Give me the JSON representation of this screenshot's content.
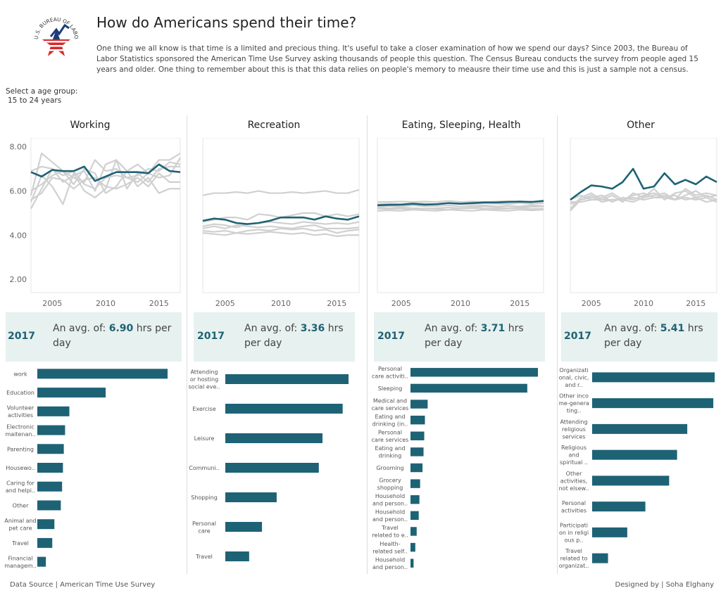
{
  "header": {
    "logo_text": "U.S. BUREAU OF LABOR STATISTICS",
    "title": "How do Americans spend their time?",
    "intro_text": "One thing we all know is that time is a limited and precious thing. It's useful to take a closer examination of how we spend our days? Since 2003, the Bureau of Labor Statistics sponsored the American Time Use Survey asking thousands of people this question. The Census Bureau conducts the survey from people aged 15 years and older. One thing to remember about this is that this data relies on people's memory to meausre their time use  and this is just a sample not a census."
  },
  "filter": {
    "label": "Select a age group:",
    "value": "15 to 24 years"
  },
  "colors": {
    "highlight": "#1e6275",
    "other_lines": "#d0d0d0",
    "avg_box": "#e7f1ef"
  },
  "chart_data": [
    {
      "type": "line",
      "title": "Working",
      "x": [
        2003,
        2004,
        2005,
        2006,
        2007,
        2008,
        2009,
        2010,
        2011,
        2012,
        2013,
        2014,
        2015,
        2016,
        2017
      ],
      "ylim": [
        1.4,
        8.4
      ],
      "yticks": [
        "2.00",
        "4.00",
        "6.00",
        "8.00"
      ],
      "xticks": [
        "2005",
        "2010",
        "2015"
      ],
      "highlight_series": {
        "values": [
          6.85,
          6.65,
          6.95,
          6.9,
          6.9,
          7.1,
          6.45,
          6.65,
          6.85,
          6.85,
          6.85,
          6.8,
          7.2,
          6.9,
          6.85
        ]
      },
      "other_series": [
        {
          "values": [
            5.2,
            6.1,
            7.0,
            6.4,
            6.7,
            6.9,
            6.0,
            7.2,
            7.4,
            6.9,
            7.2,
            6.8,
            7.4,
            7.4,
            7.7
          ]
        },
        {
          "values": [
            5.8,
            7.7,
            7.3,
            6.9,
            6.6,
            6.4,
            7.4,
            6.9,
            7.0,
            6.6,
            6.7,
            7.0,
            6.9,
            7.3,
            7.2
          ]
        },
        {
          "values": [
            5.5,
            6.7,
            6.2,
            5.4,
            6.8,
            6.0,
            5.7,
            6.1,
            7.4,
            6.1,
            6.8,
            6.4,
            7.0,
            7.1,
            7.1
          ]
        },
        {
          "values": [
            6.0,
            6.3,
            6.7,
            6.9,
            6.3,
            7.0,
            6.8,
            5.9,
            6.2,
            6.9,
            6.2,
            6.6,
            5.9,
            6.1,
            6.1
          ]
        },
        {
          "values": [
            5.6,
            5.9,
            6.6,
            6.5,
            6.1,
            6.5,
            6.6,
            6.2,
            6.1,
            6.3,
            6.6,
            6.2,
            6.8,
            6.4,
            6.4
          ]
        },
        {
          "values": [
            6.9,
            7.1,
            7.0,
            6.7,
            6.9,
            6.3,
            6.1,
            6.6,
            6.7,
            6.6,
            6.4,
            6.8,
            6.6,
            6.7,
            7.5
          ]
        }
      ]
    },
    {
      "type": "line",
      "title": "Recreation",
      "x": [
        2003,
        2004,
        2005,
        2006,
        2007,
        2008,
        2009,
        2010,
        2011,
        2012,
        2013,
        2014,
        2015,
        2016,
        2017
      ],
      "ylim": [
        1.4,
        8.4
      ],
      "xticks": [
        "2005",
        "2010",
        "2015"
      ],
      "highlight_series": {
        "values": [
          4.65,
          4.75,
          4.7,
          4.55,
          4.5,
          4.55,
          4.65,
          4.8,
          4.8,
          4.8,
          4.7,
          4.85,
          4.75,
          4.7,
          4.85
        ]
      },
      "other_series": [
        {
          "values": [
            5.8,
            5.9,
            5.9,
            5.95,
            5.9,
            6.0,
            5.9,
            5.9,
            5.95,
            5.9,
            5.95,
            6.0,
            5.9,
            5.9,
            6.05
          ]
        },
        {
          "values": [
            4.6,
            4.7,
            4.8,
            4.8,
            4.7,
            4.95,
            4.9,
            4.8,
            4.9,
            5.0,
            5.0,
            4.85,
            4.95,
            4.85,
            4.95
          ]
        },
        {
          "values": [
            4.3,
            4.4,
            4.3,
            4.45,
            4.4,
            4.35,
            4.4,
            4.35,
            4.3,
            4.4,
            4.45,
            4.3,
            4.3,
            4.3,
            4.35
          ]
        },
        {
          "values": [
            4.2,
            4.15,
            4.2,
            4.1,
            4.2,
            4.25,
            4.2,
            4.3,
            4.25,
            4.3,
            4.2,
            4.25,
            4.1,
            4.2,
            4.25
          ]
        },
        {
          "values": [
            4.1,
            4.05,
            4.0,
            4.1,
            4.05,
            4.1,
            4.15,
            4.1,
            4.05,
            4.1,
            4.0,
            4.05,
            3.95,
            4.0,
            4.0
          ]
        },
        {
          "values": [
            4.4,
            4.5,
            4.45,
            4.35,
            4.5,
            4.55,
            4.6,
            4.55,
            4.5,
            4.6,
            4.55,
            4.5,
            4.55,
            4.5,
            4.6
          ]
        }
      ]
    },
    {
      "type": "line",
      "title": "Eating, Sleeping, Health",
      "x": [
        2003,
        2004,
        2005,
        2006,
        2007,
        2008,
        2009,
        2010,
        2011,
        2012,
        2013,
        2014,
        2015,
        2016,
        2017
      ],
      "ylim": [
        1.4,
        8.4
      ],
      "xticks": [
        "2005",
        "2010",
        "2015"
      ],
      "highlight_series": {
        "values": [
          5.35,
          5.37,
          5.38,
          5.42,
          5.38,
          5.4,
          5.45,
          5.42,
          5.45,
          5.48,
          5.48,
          5.5,
          5.52,
          5.5,
          5.55
        ]
      },
      "other_series": [
        {
          "values": [
            5.5,
            5.5,
            5.52,
            5.5,
            5.52,
            5.5,
            5.55,
            5.5,
            5.52,
            5.5,
            5.52,
            5.55,
            5.5,
            5.52,
            5.5
          ]
        },
        {
          "values": [
            5.25,
            5.22,
            5.25,
            5.22,
            5.2,
            5.22,
            5.25,
            5.22,
            5.25,
            5.3,
            5.25,
            5.22,
            5.25,
            5.28,
            5.3
          ]
        },
        {
          "values": [
            5.2,
            5.18,
            5.2,
            5.15,
            5.2,
            5.18,
            5.15,
            5.2,
            5.22,
            5.2,
            5.18,
            5.2,
            5.22,
            5.18,
            5.2
          ]
        },
        {
          "values": [
            5.3,
            5.32,
            5.3,
            5.35,
            5.3,
            5.32,
            5.35,
            5.3,
            5.32,
            5.35,
            5.3,
            5.32,
            5.3,
            5.35,
            5.32
          ]
        },
        {
          "values": [
            5.4,
            5.42,
            5.4,
            5.45,
            5.42,
            5.4,
            5.45,
            5.42,
            5.4,
            5.45,
            5.42,
            5.4,
            5.45,
            5.42,
            5.45
          ]
        },
        {
          "values": [
            5.1,
            5.12,
            5.1,
            5.15,
            5.12,
            5.1,
            5.15,
            5.12,
            5.1,
            5.15,
            5.12,
            5.1,
            5.15,
            5.12,
            5.15
          ]
        }
      ]
    },
    {
      "type": "line",
      "title": "Other",
      "x": [
        2003,
        2004,
        2005,
        2006,
        2007,
        2008,
        2009,
        2010,
        2011,
        2012,
        2013,
        2014,
        2015,
        2016,
        2017
      ],
      "ylim": [
        1.4,
        8.4
      ],
      "xticks": [
        "2005",
        "2010",
        "2015"
      ],
      "highlight_series": {
        "values": [
          5.6,
          5.95,
          6.25,
          6.2,
          6.1,
          6.4,
          7.0,
          6.1,
          6.2,
          6.8,
          6.3,
          6.5,
          6.3,
          6.65,
          6.4
        ]
      },
      "other_series": [
        {
          "values": [
            5.2,
            5.7,
            5.9,
            5.6,
            5.8,
            5.5,
            5.9,
            5.7,
            5.8,
            5.9,
            5.6,
            6.1,
            5.8,
            5.9,
            5.8
          ]
        },
        {
          "values": [
            5.4,
            5.6,
            5.7,
            5.8,
            5.5,
            5.7,
            5.6,
            5.8,
            5.9,
            5.7,
            5.8,
            5.6,
            5.7,
            5.5,
            5.6
          ]
        },
        {
          "values": [
            5.1,
            5.6,
            5.8,
            5.5,
            5.6,
            5.6,
            5.5,
            5.7,
            6.1,
            5.6,
            5.9,
            6.0,
            5.7,
            5.8,
            5.6
          ]
        },
        {
          "values": [
            5.6,
            5.8,
            5.6,
            5.7,
            5.9,
            5.6,
            5.8,
            5.9,
            5.7,
            5.8,
            5.6,
            5.8,
            6.0,
            5.7,
            5.8
          ]
        },
        {
          "values": [
            5.5,
            5.5,
            5.6,
            5.6,
            5.6,
            5.6,
            5.7,
            5.6,
            5.7,
            5.7,
            5.6,
            5.7,
            5.6,
            5.7,
            5.5
          ]
        }
      ]
    },
    {
      "type": "bar",
      "title": "Working",
      "categories": [
        [
          "work"
        ],
        [
          "Education"
        ],
        [
          "Volunteer",
          "activities"
        ],
        [
          "Electronic",
          "maitenan.."
        ],
        [
          "Parenting"
        ],
        [
          "Housewo.."
        ],
        [
          "Caring for",
          "and helpi.."
        ],
        [
          "Other"
        ],
        [
          "Animal and",
          "pet care"
        ],
        [
          "Travel"
        ],
        [
          "Financial",
          "managem.."
        ]
      ],
      "values": [
        3.05,
        1.6,
        0.75,
        0.65,
        0.62,
        0.6,
        0.58,
        0.55,
        0.4,
        0.35,
        0.2
      ]
    },
    {
      "type": "bar",
      "title": "Recreation",
      "categories": [
        [
          "Attending",
          "or hosting",
          "social eve.."
        ],
        [
          "Exercise"
        ],
        [
          "Leisure"
        ],
        [
          "Communi.."
        ],
        [
          "Shopping"
        ],
        [
          "Personal",
          "care"
        ],
        [
          "Travel"
        ]
      ],
      "values": [
        3.36,
        3.2,
        2.65,
        2.55,
        1.4,
        1.0,
        0.65
      ]
    },
    {
      "type": "bar",
      "title": "Eating, Sleeping, Health",
      "categories": [
        [
          "Personal",
          "care activiti.."
        ],
        [
          "Sleeping"
        ],
        [
          "Medical and",
          "care services"
        ],
        [
          "Eating and",
          "drinking (in.."
        ],
        [
          "Personal",
          "care services"
        ],
        [
          "Eating and",
          "drinking"
        ],
        [
          "Grooming"
        ],
        [
          "Grocery",
          "shopping"
        ],
        [
          "Household",
          "and person.."
        ],
        [
          "Household",
          "and person.."
        ],
        [
          "Travel",
          "related to e.."
        ],
        [
          "Health-",
          "related self.."
        ],
        [
          "Household",
          "and person.."
        ]
      ],
      "values": [
        3.71,
        3.4,
        0.5,
        0.42,
        0.4,
        0.38,
        0.35,
        0.28,
        0.26,
        0.24,
        0.18,
        0.14,
        0.09
      ]
    },
    {
      "type": "bar",
      "title": "Other",
      "categories": [
        [
          "Organizati",
          "onal, civic,",
          "and r.."
        ],
        [
          "Other inco",
          "me-genera",
          "ting.."
        ],
        [
          "Attending",
          "religious",
          "services"
        ],
        [
          "Religious",
          "and",
          "spiritual .."
        ],
        [
          "Other",
          "activities,",
          "not elsew.."
        ],
        [
          "Personal",
          "activities"
        ],
        [
          "Participati",
          "on in religi",
          "ous p.."
        ],
        [
          "Travel",
          "related to",
          "organizat.."
        ]
      ],
      "values": [
        5.41,
        5.35,
        4.2,
        3.75,
        3.4,
        2.35,
        1.55,
        0.7
      ]
    }
  ],
  "avg_cards": [
    {
      "year": "2017",
      "prefix": "An avg. of: ",
      "value": "6.90",
      "suffix": " hrs per day"
    },
    {
      "year": "2017",
      "prefix": "An avg. of: ",
      "value": "3.36",
      "suffix": " hrs per day"
    },
    {
      "year": "2017",
      "prefix": "An avg. of: ",
      "value": "3.71",
      "suffix": " hrs per day"
    },
    {
      "year": "2017",
      "prefix": "An avg. of: ",
      "value": "5.41",
      "suffix": " hrs per day"
    }
  ],
  "footer": {
    "source": "Data Source | American Time Use Survey",
    "credit": "Designed by | Soha Elghany"
  }
}
